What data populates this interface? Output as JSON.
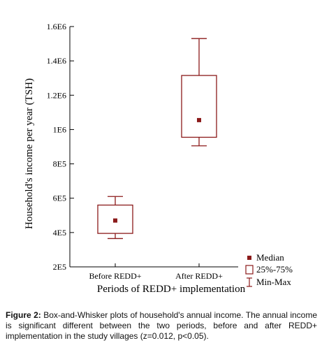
{
  "chart_data": {
    "type": "boxplot",
    "ylabel": "Household's income per year (TSH)",
    "xlabel": "Periods of REDD+ implementation",
    "ylim": [
      200000,
      1600000
    ],
    "y_ticks": [
      200000,
      400000,
      600000,
      800000,
      1000000,
      1200000,
      1400000,
      1600000
    ],
    "y_tick_labels": [
      "2E5",
      "4E5",
      "6E5",
      "8E5",
      "1E6",
      "1.2E6",
      "1.4E6",
      "1.6E6"
    ],
    "categories": [
      "Before REDD+",
      "After REDD+"
    ],
    "boxes": [
      {
        "category": "Before REDD+",
        "min": 365000,
        "q1": 395000,
        "median": 470000,
        "q3": 560000,
        "max": 610000
      },
      {
        "category": "After REDD+",
        "min": 905000,
        "q1": 955000,
        "median": 1055000,
        "q3": 1315000,
        "max": 1530000
      }
    ],
    "legend": {
      "position": "bottom-right",
      "entries": [
        {
          "symbol": "median",
          "label": "Median"
        },
        {
          "symbol": "box",
          "label": "25%-75%"
        },
        {
          "symbol": "whisker",
          "label": "Min-Max"
        }
      ]
    },
    "colors": {
      "box": "#8b1a1a",
      "axis": "#000000"
    }
  },
  "caption": {
    "label": "Figure 2:",
    "text": " Box-and-Whisker plots of household's annual income. The annual income is significant different between the two periods, before and after REDD+ implementation in the study villages (z=0.012, p<0.05)."
  }
}
